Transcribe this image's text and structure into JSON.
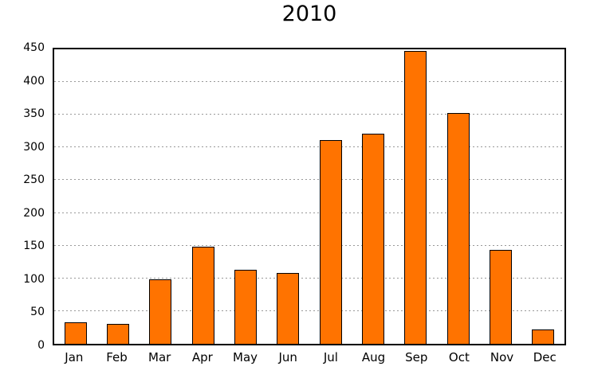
{
  "chart_data": {
    "type": "bar",
    "title": "2010",
    "categories": [
      "Jan",
      "Feb",
      "Mar",
      "Apr",
      "May",
      "Jun",
      "Jul",
      "Aug",
      "Sep",
      "Oct",
      "Nov",
      "Dec"
    ],
    "values": [
      33,
      31,
      98,
      149,
      113,
      108,
      311,
      321,
      448,
      353,
      144,
      22
    ],
    "xlabel": "",
    "ylabel": "",
    "ylim": [
      0,
      450
    ],
    "yticks": [
      0,
      50,
      100,
      150,
      200,
      250,
      300,
      350,
      400,
      450
    ],
    "grid": "horizontal-dotted",
    "legend": "none",
    "colors": {
      "bar_fill": "#ff7300",
      "bar_edge": "#000000",
      "grid_line": "#999999",
      "axis_frame": "#000000",
      "background": "#ffffff",
      "text": "#000000"
    }
  }
}
